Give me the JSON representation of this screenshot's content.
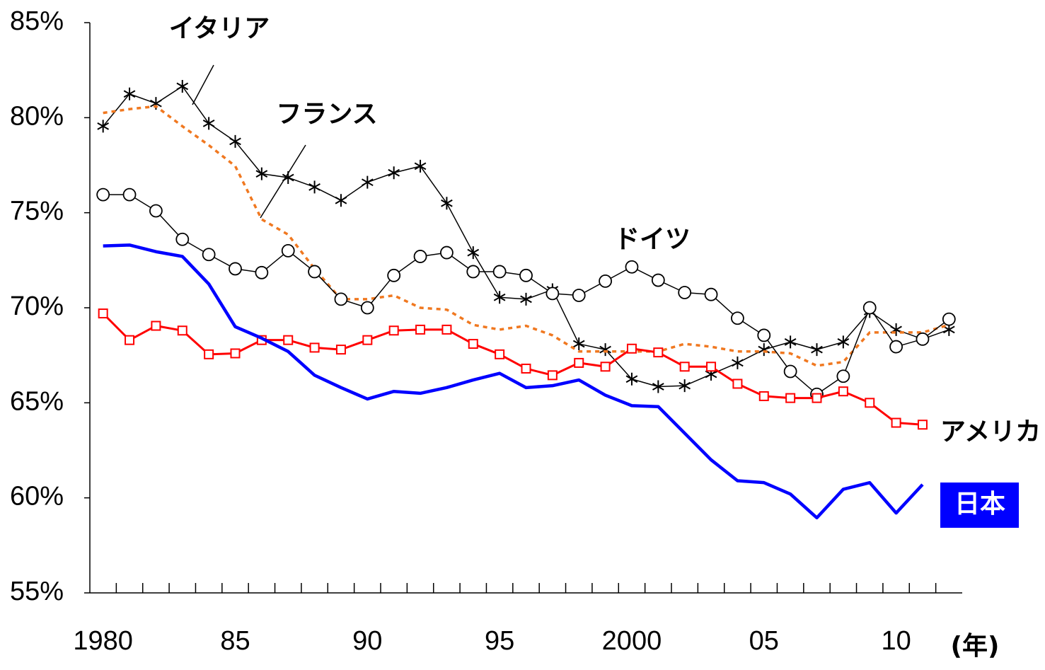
{
  "chart_data": {
    "type": "line",
    "x_label": "(年)",
    "x": [
      1980,
      1981,
      1982,
      1983,
      1984,
      1985,
      1986,
      1987,
      1988,
      1989,
      1990,
      1991,
      1992,
      1993,
      1994,
      1995,
      1996,
      1997,
      1998,
      1999,
      2000,
      2001,
      2002,
      2003,
      2004,
      2005,
      2006,
      2007,
      2008,
      2009,
      2010,
      2011,
      2012
    ],
    "xlim": [
      1979.5,
      2012.5
    ],
    "xticks": [
      1980,
      {
        "value": 1985,
        "label": "85"
      },
      {
        "value": 1990,
        "label": "90"
      },
      {
        "value": 1995,
        "label": "95"
      },
      2000,
      {
        "value": 2005,
        "label": "05"
      },
      {
        "value": 2010,
        "label": "10"
      }
    ],
    "xminorticks": [
      1980.5,
      1981.5,
      1982.5,
      1983.5,
      1984.5,
      1985.5,
      1986.5,
      1987.5,
      1988.5,
      1989.5,
      1990.5,
      1991.5,
      1992.5,
      1993.5,
      1994.5,
      1995.5,
      1996.5,
      1997.5,
      1998.5,
      1999.5,
      2000.5,
      2001.5,
      2002.5,
      2003.5,
      2004.5,
      2005.5,
      2006.5,
      2007.5,
      2008.5,
      2009.5,
      2010.5,
      2011.5
    ],
    "ylim": [
      55,
      85
    ],
    "yticks": [
      {
        "value": 55,
        "label": "55%"
      },
      {
        "value": 60,
        "label": "60%"
      },
      {
        "value": 65,
        "label": "65%"
      },
      {
        "value": 70,
        "label": "70%"
      },
      {
        "value": 75,
        "label": "75%"
      },
      {
        "value": 80,
        "label": "80%"
      },
      {
        "value": 85,
        "label": "85%"
      }
    ],
    "series": [
      {
        "name": "イタリア",
        "color": "#000000",
        "marker": "asterisk",
        "values": [
          79.55,
          81.25,
          80.75,
          81.65,
          79.7,
          78.75,
          77.05,
          76.85,
          76.35,
          75.65,
          76.6,
          77.1,
          77.45,
          75.5,
          72.9,
          70.55,
          70.45,
          70.95,
          68.1,
          67.8,
          66.25,
          65.85,
          65.9,
          66.5,
          67.1,
          67.8,
          68.2,
          67.8,
          68.2,
          69.8,
          68.85,
          68.35,
          68.85
        ]
      },
      {
        "name": "フランス",
        "color": "#f07820",
        "marker": "dotted",
        "values": [
          80.25,
          80.45,
          80.6,
          79.55,
          78.55,
          77.45,
          74.65,
          73.85,
          72.05,
          70.45,
          70.45,
          70.65,
          70.0,
          69.9,
          69.1,
          68.85,
          69.05,
          68.55,
          67.7,
          67.7,
          67.7,
          67.7,
          68.1,
          67.95,
          67.7,
          67.7,
          67.6,
          66.95,
          67.15,
          68.7,
          68.7,
          68.7,
          69.1
        ]
      },
      {
        "name": "ドイツ",
        "color": "#000000",
        "marker": "circle",
        "values": [
          75.95,
          75.95,
          75.1,
          73.6,
          72.8,
          72.05,
          71.85,
          73.0,
          71.9,
          70.45,
          70.0,
          71.7,
          72.7,
          72.9,
          71.9,
          71.9,
          71.7,
          70.75,
          70.65,
          71.4,
          72.15,
          71.45,
          70.8,
          70.7,
          69.45,
          68.55,
          66.65,
          65.45,
          66.4,
          70.0,
          67.95,
          68.35,
          69.4
        ]
      },
      {
        "name": "アメリカ",
        "color": "#ff0000",
        "marker": "square",
        "values": [
          69.7,
          68.3,
          69.05,
          68.8,
          67.55,
          67.6,
          68.3,
          68.3,
          67.9,
          67.8,
          68.3,
          68.8,
          68.85,
          68.85,
          68.1,
          67.55,
          66.8,
          66.45,
          67.1,
          66.9,
          67.85,
          67.65,
          66.9,
          66.9,
          66.0,
          65.35,
          65.25,
          65.25,
          65.6,
          65.0,
          63.95,
          63.85,
          null
        ]
      },
      {
        "name": "日本",
        "color": "#0000ff",
        "marker": "none",
        "values": [
          73.25,
          73.3,
          72.95,
          72.7,
          71.25,
          69.0,
          68.4,
          67.7,
          66.45,
          65.8,
          65.2,
          65.6,
          65.5,
          65.8,
          66.2,
          66.55,
          65.8,
          65.9,
          66.2,
          65.4,
          64.85,
          64.8,
          63.4,
          62.0,
          60.9,
          60.8,
          60.2,
          58.95,
          60.45,
          60.8,
          59.2,
          60.7,
          null
        ]
      }
    ]
  }
}
